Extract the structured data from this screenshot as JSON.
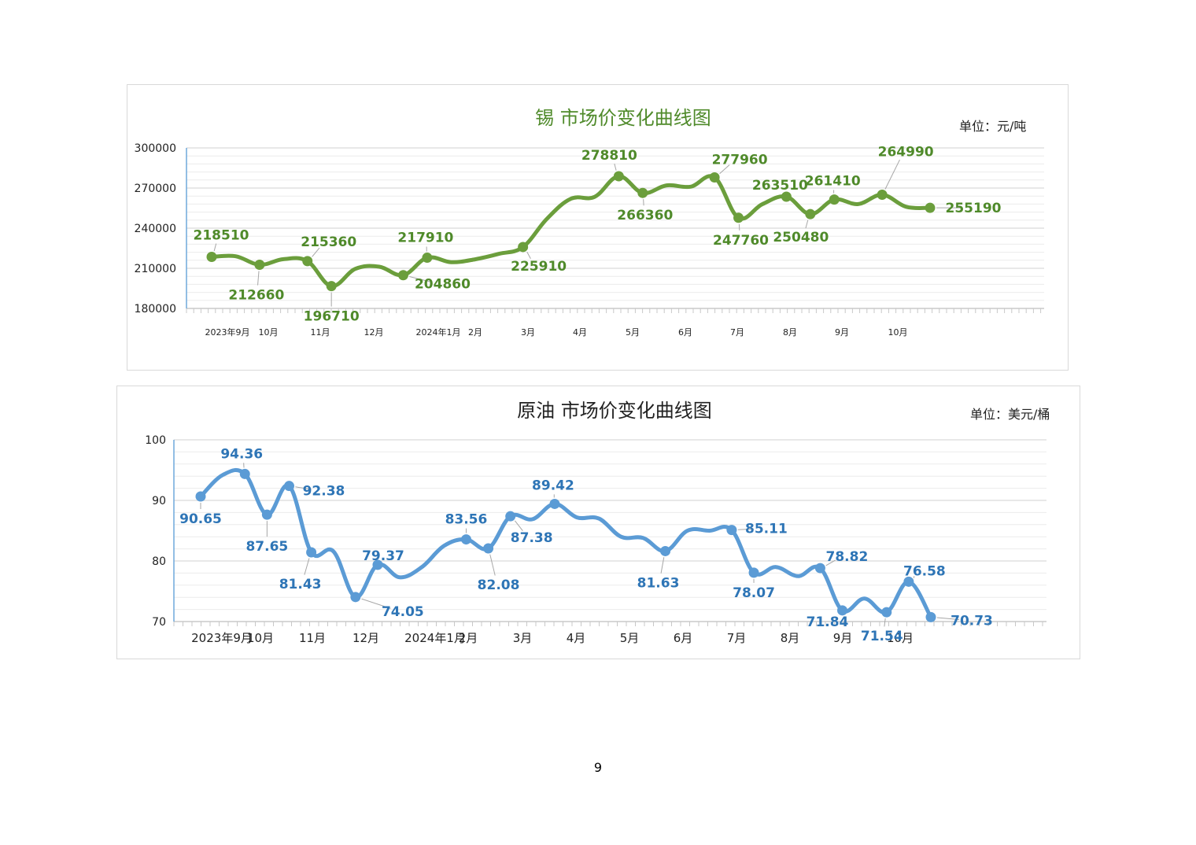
{
  "page_number": "9",
  "chart_data": [
    {
      "type": "line",
      "title": "锡 市场价变化曲线图",
      "unit": "单位：元/吨",
      "color": "#6b9e3c",
      "label_color": "#4f8a2a",
      "title_color": "#4f8a2a",
      "smooth": true,
      "grid": true,
      "ylim": [
        180000,
        300000
      ],
      "yticks": [
        "180000",
        "210000",
        "240000",
        "270000",
        "300000"
      ],
      "xticks": [
        "2023年9月",
        "10月",
        "11月",
        "12月",
        "2024年1月",
        "2月",
        "3月",
        "4月",
        "5月",
        "6月",
        "7月",
        "8月",
        "9月",
        "10月"
      ],
      "series": [
        {
          "values": [
            218510,
            219000,
            212660,
            216800,
            215360,
            196710,
            209600,
            211200,
            204860,
            217910,
            214600,
            216700,
            220800,
            225910,
            247000,
            262000,
            263500,
            278810,
            266360,
            272000,
            271000,
            277960,
            247760,
            258000,
            263510,
            250480,
            261410,
            258000,
            264990,
            256000,
            255190
          ],
          "points": [
            {
              "i": 0,
              "label": "218510"
            },
            {
              "i": 2,
              "label": "212660"
            },
            {
              "i": 4,
              "label": "215360"
            },
            {
              "i": 5,
              "label": "196710"
            },
            {
              "i": 8,
              "label": "204860"
            },
            {
              "i": 9,
              "label": "217910"
            },
            {
              "i": 13,
              "label": "225910"
            },
            {
              "i": 17,
              "label": "278810"
            },
            {
              "i": 18,
              "label": "266360"
            },
            {
              "i": 21,
              "label": "277960"
            },
            {
              "i": 22,
              "label": "247760"
            },
            {
              "i": 24,
              "label": "263510"
            },
            {
              "i": 25,
              "label": "250480"
            },
            {
              "i": 26,
              "label": "261410"
            },
            {
              "i": 28,
              "label": "264990"
            },
            {
              "i": 30,
              "label": "255190"
            }
          ]
        }
      ]
    },
    {
      "type": "line",
      "title": "原油 市场价变化曲线图",
      "unit": "单位：美元/桶",
      "color": "#5b9bd5",
      "label_color": "#2e75b6",
      "title_color": "#222222",
      "smooth": true,
      "grid": true,
      "ylim": [
        70,
        100
      ],
      "yticks": [
        "70",
        "80",
        "90",
        "100"
      ],
      "xticks": [
        "2023年9月",
        "10月",
        "11月",
        "12月",
        "2024年1月",
        "2月",
        "3月",
        "4月",
        "5月",
        "6月",
        "7月",
        "8月",
        "9月",
        "10月"
      ],
      "series": [
        {
          "values": [
            90.65,
            94.2,
            94.36,
            87.65,
            92.38,
            81.43,
            81.6,
            74.05,
            79.37,
            77.3,
            79.0,
            82.5,
            83.56,
            82.08,
            87.38,
            86.9,
            89.42,
            87.2,
            87.0,
            84.0,
            83.8,
            81.63,
            85.0,
            85.0,
            85.11,
            78.07,
            79.0,
            77.5,
            78.82,
            71.84,
            73.8,
            71.54,
            76.58,
            70.73
          ],
          "points": [
            {
              "i": 0,
              "label": "90.65"
            },
            {
              "i": 2,
              "label": "94.36"
            },
            {
              "i": 3,
              "label": "87.65"
            },
            {
              "i": 4,
              "label": "92.38"
            },
            {
              "i": 5,
              "label": "81.43"
            },
            {
              "i": 7,
              "label": "74.05"
            },
            {
              "i": 8,
              "label": "79.37"
            },
            {
              "i": 12,
              "label": "83.56"
            },
            {
              "i": 13,
              "label": "82.08"
            },
            {
              "i": 14,
              "label": "87.38"
            },
            {
              "i": 16,
              "label": "89.42"
            },
            {
              "i": 21,
              "label": "81.63"
            },
            {
              "i": 24,
              "label": "85.11"
            },
            {
              "i": 25,
              "label": "78.07"
            },
            {
              "i": 28,
              "label": "78.82"
            },
            {
              "i": 29,
              "label": "71.84"
            },
            {
              "i": 31,
              "label": "71.54"
            },
            {
              "i": 32,
              "label": "76.58"
            },
            {
              "i": 33,
              "label": "70.73"
            }
          ]
        }
      ]
    }
  ]
}
